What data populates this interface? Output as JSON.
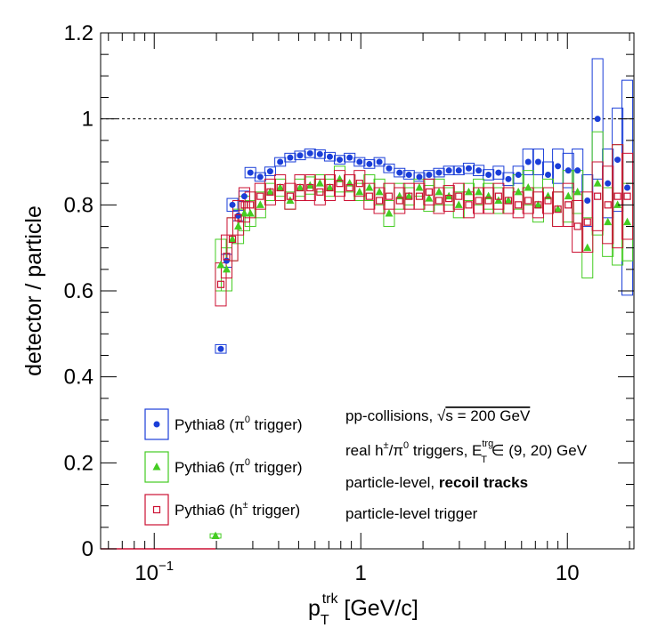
{
  "chart_data": {
    "type": "scatter",
    "ylabel": "detector / particle",
    "xlabel": {
      "main": "p",
      "sub": "T",
      "sup": "trk",
      "units": " [GeV/c]"
    },
    "xscale": "log",
    "xlim": [
      0.055,
      21
    ],
    "ylim": [
      0,
      1.2
    ],
    "yticks": [
      "0",
      "0.2",
      "0.4",
      "0.6",
      "0.8",
      "1",
      "1.2"
    ],
    "xticks": [
      "10",
      "1",
      "10"
    ],
    "xticks_sup": [
      "−1",
      "",
      ""
    ],
    "reference_line": 1,
    "colors": {
      "pythia8_pi0": "#1a3ed8",
      "pythia6_pi0": "#44cc22",
      "pythia6_h": "#cc1133"
    },
    "legend": [
      {
        "key": "pythia8_pi0",
        "label": "Pythia8 (π",
        "sup": "0",
        "tail": " trigger)",
        "marker": "circle"
      },
      {
        "key": "pythia6_pi0",
        "label": "Pythia6 (π",
        "sup": "0",
        "tail": " trigger)",
        "marker": "triangle"
      },
      {
        "key": "pythia6_h",
        "label": "Pythia6 (h",
        "sup": "±",
        "tail": " trigger)",
        "marker": "open-square"
      }
    ],
    "annotations": {
      "line1_a": "pp-collisions, ",
      "line1_sqrt": "√",
      "line1_b": "s = 200 GeV",
      "line2_a": "real h",
      "line2_sup1": "±",
      "line2_b": "/π",
      "line2_sup2": "0",
      "line2_c": " triggers, E",
      "line2_sup3": "trg",
      "line2_sub3": "T",
      "line2_d": " ∈ (9, 20) GeV",
      "line3_a": "particle-level, ",
      "line3_b": "recoil tracks",
      "line4": "particle-level trigger"
    },
    "series": [
      {
        "key": "pythia8_pi0",
        "x": [
          0.21,
          0.224,
          0.239,
          0.255,
          0.273,
          0.292,
          0.326,
          0.364,
          0.407,
          0.455,
          0.508,
          0.568,
          0.634,
          0.708,
          0.79,
          0.883,
          0.986,
          1.1,
          1.23,
          1.37,
          1.54,
          1.71,
          1.92,
          2.14,
          2.39,
          2.67,
          2.98,
          3.33,
          3.72,
          4.15,
          4.64,
          5.18,
          5.79,
          6.46,
          7.22,
          8.06,
          9.0,
          10.1,
          11.2,
          12.5,
          14.0,
          15.7,
          17.5,
          19.5
        ],
        "y": [
          0.465,
          0.67,
          0.8,
          0.775,
          0.82,
          0.875,
          0.865,
          0.878,
          0.9,
          0.91,
          0.915,
          0.92,
          0.918,
          0.912,
          0.905,
          0.91,
          0.9,
          0.895,
          0.9,
          0.885,
          0.875,
          0.87,
          0.865,
          0.87,
          0.875,
          0.88,
          0.88,
          0.885,
          0.88,
          0.87,
          0.875,
          0.86,
          0.87,
          0.9,
          0.9,
          0.87,
          0.89,
          0.88,
          0.88,
          0.81,
          1.0,
          0.85,
          0.905,
          0.84
        ],
        "sys": [
          0.01,
          0.015,
          0.015,
          0.012,
          0.012,
          0.012,
          0.01,
          0.01,
          0.01,
          0.01,
          0.01,
          0.01,
          0.01,
          0.01,
          0.01,
          0.01,
          0.01,
          0.01,
          0.01,
          0.01,
          0.01,
          0.01,
          0.01,
          0.01,
          0.01,
          0.01,
          0.01,
          0.012,
          0.012,
          0.012,
          0.015,
          0.015,
          0.02,
          0.03,
          0.03,
          0.03,
          0.04,
          0.04,
          0.05,
          0.06,
          0.14,
          0.08,
          0.12,
          0.25
        ]
      },
      {
        "key": "pythia6_pi0",
        "x": [
          0.198,
          0.21,
          0.224,
          0.239,
          0.255,
          0.273,
          0.292,
          0.326,
          0.364,
          0.407,
          0.455,
          0.508,
          0.568,
          0.634,
          0.708,
          0.79,
          0.883,
          0.986,
          1.1,
          1.23,
          1.37,
          1.54,
          1.71,
          1.92,
          2.14,
          2.39,
          2.67,
          2.98,
          3.33,
          3.72,
          4.15,
          4.64,
          5.18,
          5.79,
          6.46,
          7.22,
          8.06,
          9.0,
          10.1,
          11.2,
          12.5,
          14.0,
          15.7,
          17.5,
          19.5
        ],
        "y": [
          0.03,
          0.66,
          0.65,
          0.72,
          0.75,
          0.78,
          0.78,
          0.8,
          0.83,
          0.84,
          0.81,
          0.84,
          0.845,
          0.85,
          0.84,
          0.86,
          0.85,
          0.83,
          0.84,
          0.83,
          0.78,
          0.82,
          0.82,
          0.84,
          0.815,
          0.83,
          0.82,
          0.8,
          0.83,
          0.83,
          0.82,
          0.81,
          0.81,
          0.83,
          0.84,
          0.8,
          0.82,
          0.79,
          0.82,
          0.83,
          0.7,
          0.85,
          0.76,
          0.8,
          0.76
        ],
        "sys": [
          0.005,
          0.06,
          0.05,
          0.05,
          0.04,
          0.04,
          0.03,
          0.03,
          0.02,
          0.02,
          0.02,
          0.02,
          0.02,
          0.02,
          0.02,
          0.03,
          0.02,
          0.02,
          0.03,
          0.03,
          0.03,
          0.03,
          0.02,
          0.02,
          0.03,
          0.03,
          0.02,
          0.03,
          0.02,
          0.03,
          0.03,
          0.03,
          0.03,
          0.04,
          0.04,
          0.04,
          0.04,
          0.04,
          0.06,
          0.05,
          0.07,
          0.12,
          0.08,
          0.14,
          0.09
        ]
      },
      {
        "key": "pythia6_h",
        "x": [
          0.21,
          0.224,
          0.239,
          0.255,
          0.273,
          0.292,
          0.326,
          0.364,
          0.407,
          0.455,
          0.508,
          0.568,
          0.634,
          0.708,
          0.79,
          0.883,
          0.986,
          1.1,
          1.23,
          1.37,
          1.54,
          1.71,
          1.92,
          2.14,
          2.39,
          2.67,
          2.98,
          3.33,
          3.72,
          4.15,
          4.64,
          5.18,
          5.79,
          6.46,
          7.22,
          8.06,
          9.0,
          10.1,
          11.2,
          12.5,
          14.0,
          15.7,
          17.5,
          19.5
        ],
        "y": [
          0.615,
          0.68,
          0.72,
          0.77,
          0.8,
          0.8,
          0.82,
          0.83,
          0.84,
          0.82,
          0.84,
          0.84,
          0.83,
          0.84,
          0.85,
          0.84,
          0.85,
          0.82,
          0.81,
          0.82,
          0.81,
          0.82,
          0.82,
          0.83,
          0.81,
          0.815,
          0.82,
          0.8,
          0.81,
          0.81,
          0.82,
          0.81,
          0.8,
          0.81,
          0.8,
          0.81,
          0.79,
          0.8,
          0.75,
          0.76,
          0.82,
          0.8,
          0.82,
          0.82
        ],
        "sys": [
          0.05,
          0.05,
          0.05,
          0.04,
          0.04,
          0.03,
          0.03,
          0.03,
          0.03,
          0.03,
          0.03,
          0.03,
          0.03,
          0.03,
          0.03,
          0.03,
          0.03,
          0.03,
          0.03,
          0.03,
          0.03,
          0.03,
          0.03,
          0.03,
          0.03,
          0.03,
          0.03,
          0.03,
          0.03,
          0.03,
          0.03,
          0.03,
          0.03,
          0.03,
          0.03,
          0.03,
          0.04,
          0.05,
          0.06,
          0.07,
          0.08,
          0.09,
          0.12,
          0.1
        ]
      }
    ]
  }
}
